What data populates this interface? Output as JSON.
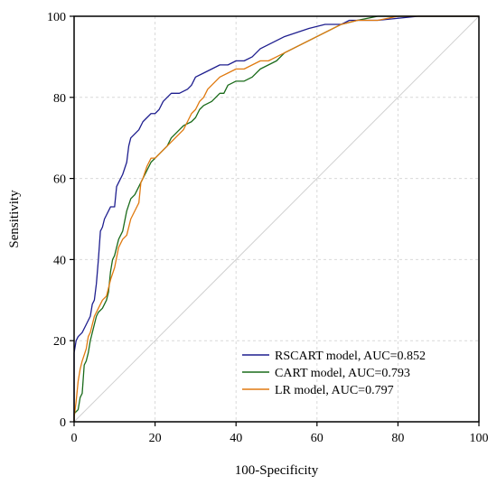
{
  "chart_data": {
    "type": "line",
    "title": "",
    "xlabel": "100-Specificity",
    "ylabel": "Sensitivity",
    "xlim": [
      0,
      100
    ],
    "ylim": [
      0,
      100
    ],
    "x_ticks": [
      "0",
      "20",
      "40",
      "60",
      "80",
      "100"
    ],
    "y_ticks": [
      "0",
      "20",
      "40",
      "60",
      "80",
      "100"
    ],
    "grid": true,
    "legend_position": "bottom-right",
    "reference_line": true,
    "series": [
      {
        "name": "RSCART model, AUC=0.852",
        "color": "#1f1f8f",
        "points": [
          [
            0,
            0
          ],
          [
            0,
            17
          ],
          [
            0.5,
            20
          ],
          [
            1,
            21
          ],
          [
            2,
            22
          ],
          [
            3,
            24
          ],
          [
            4,
            26
          ],
          [
            4.5,
            29
          ],
          [
            5,
            30
          ],
          [
            5.5,
            34
          ],
          [
            6,
            40
          ],
          [
            6.5,
            47
          ],
          [
            7,
            48
          ],
          [
            7.5,
            50
          ],
          [
            8,
            51
          ],
          [
            9,
            53
          ],
          [
            10,
            53
          ],
          [
            10.5,
            58
          ],
          [
            11,
            59
          ],
          [
            12,
            61
          ],
          [
            13,
            64
          ],
          [
            13.5,
            68
          ],
          [
            14,
            70
          ],
          [
            15,
            71
          ],
          [
            16,
            72
          ],
          [
            17,
            74
          ],
          [
            18,
            75
          ],
          [
            19,
            76
          ],
          [
            20,
            76
          ],
          [
            21,
            77
          ],
          [
            22,
            79
          ],
          [
            23,
            80
          ],
          [
            24,
            81
          ],
          [
            26,
            81
          ],
          [
            28,
            82
          ],
          [
            29,
            83
          ],
          [
            30,
            85
          ],
          [
            32,
            86
          ],
          [
            34,
            87
          ],
          [
            36,
            88
          ],
          [
            38,
            88
          ],
          [
            40,
            89
          ],
          [
            42,
            89
          ],
          [
            44,
            90
          ],
          [
            46,
            92
          ],
          [
            48,
            93
          ],
          [
            50,
            94
          ],
          [
            52,
            95
          ],
          [
            55,
            96
          ],
          [
            58,
            97
          ],
          [
            62,
            98
          ],
          [
            66,
            98
          ],
          [
            68,
            99
          ],
          [
            75,
            99
          ],
          [
            80,
            99.5
          ],
          [
            85,
            100
          ],
          [
            100,
            100
          ]
        ]
      },
      {
        "name": "CART model, AUC=0.793",
        "color": "#1a6b1a",
        "points": [
          [
            0,
            0
          ],
          [
            0,
            2
          ],
          [
            1,
            3
          ],
          [
            1.5,
            6
          ],
          [
            2,
            7
          ],
          [
            2.5,
            14
          ],
          [
            3,
            15
          ],
          [
            3.5,
            17
          ],
          [
            4,
            20
          ],
          [
            4.5,
            22
          ],
          [
            5,
            24
          ],
          [
            5.5,
            26
          ],
          [
            6,
            27
          ],
          [
            7,
            28
          ],
          [
            8,
            30
          ],
          [
            8.5,
            32
          ],
          [
            9,
            37
          ],
          [
            9.5,
            40
          ],
          [
            10,
            41
          ],
          [
            11,
            45
          ],
          [
            12,
            47
          ],
          [
            13,
            52
          ],
          [
            14,
            55
          ],
          [
            15,
            56
          ],
          [
            16,
            58
          ],
          [
            17,
            60
          ],
          [
            18,
            62
          ],
          [
            19,
            64
          ],
          [
            20,
            65
          ],
          [
            21,
            66
          ],
          [
            22,
            67
          ],
          [
            23,
            68
          ],
          [
            24,
            70
          ],
          [
            25,
            71
          ],
          [
            26,
            72
          ],
          [
            27,
            73
          ],
          [
            29,
            74
          ],
          [
            30,
            75
          ],
          [
            31,
            77
          ],
          [
            32,
            78
          ],
          [
            34,
            79
          ],
          [
            35,
            80
          ],
          [
            36,
            81
          ],
          [
            37,
            81
          ],
          [
            38,
            83
          ],
          [
            40,
            84
          ],
          [
            42,
            84
          ],
          [
            44,
            85
          ],
          [
            46,
            87
          ],
          [
            48,
            88
          ],
          [
            50,
            89
          ],
          [
            52,
            91
          ],
          [
            54,
            92
          ],
          [
            56,
            93
          ],
          [
            58,
            94
          ],
          [
            60,
            95
          ],
          [
            62,
            96
          ],
          [
            64,
            97
          ],
          [
            66,
            98
          ],
          [
            70,
            99
          ],
          [
            75,
            100
          ],
          [
            100,
            100
          ]
        ]
      },
      {
        "name": "LR model, AUC=0.797",
        "color": "#e07a10",
        "points": [
          [
            0,
            0
          ],
          [
            0,
            1
          ],
          [
            0.5,
            5
          ],
          [
            1,
            10
          ],
          [
            1.5,
            13
          ],
          [
            2,
            15
          ],
          [
            3,
            18
          ],
          [
            3.5,
            21
          ],
          [
            4,
            22
          ],
          [
            5,
            26
          ],
          [
            6,
            28
          ],
          [
            7,
            30
          ],
          [
            8,
            31
          ],
          [
            9,
            35
          ],
          [
            10,
            38
          ],
          [
            11,
            43
          ],
          [
            12,
            45
          ],
          [
            13,
            46
          ],
          [
            14,
            50
          ],
          [
            15,
            52
          ],
          [
            16,
            54
          ],
          [
            16.5,
            59
          ],
          [
            17,
            60
          ],
          [
            18,
            63
          ],
          [
            19,
            65
          ],
          [
            20,
            65
          ],
          [
            21,
            66
          ],
          [
            22,
            67
          ],
          [
            23,
            68
          ],
          [
            24,
            69
          ],
          [
            25,
            70
          ],
          [
            26,
            71
          ],
          [
            27,
            72
          ],
          [
            28,
            74
          ],
          [
            29,
            76
          ],
          [
            30,
            77
          ],
          [
            31,
            79
          ],
          [
            32,
            80
          ],
          [
            33,
            82
          ],
          [
            34,
            83
          ],
          [
            35,
            84
          ],
          [
            36,
            85
          ],
          [
            38,
            86
          ],
          [
            40,
            87
          ],
          [
            42,
            87
          ],
          [
            44,
            88
          ],
          [
            46,
            89
          ],
          [
            48,
            89
          ],
          [
            50,
            90
          ],
          [
            52,
            91
          ],
          [
            54,
            92
          ],
          [
            56,
            93
          ],
          [
            58,
            94
          ],
          [
            60,
            95
          ],
          [
            62,
            96
          ],
          [
            64,
            97
          ],
          [
            66,
            98
          ],
          [
            70,
            99
          ],
          [
            75,
            99
          ],
          [
            80,
            100
          ],
          [
            100,
            100
          ]
        ]
      }
    ]
  }
}
